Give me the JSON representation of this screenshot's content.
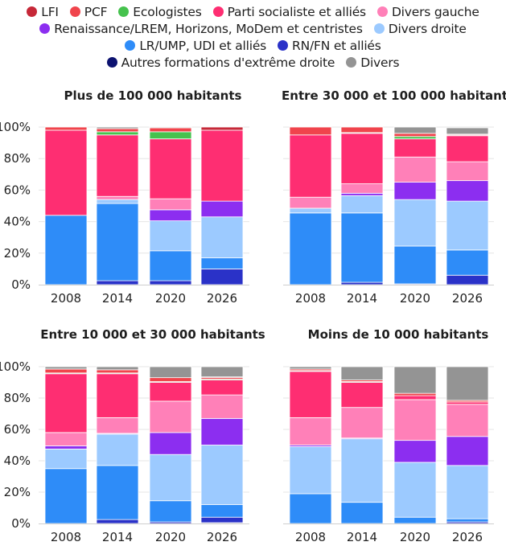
{
  "legend": [
    {
      "name": "LFI",
      "color": "#c62838"
    },
    {
      "name": "PCF",
      "color": "#f0444c"
    },
    {
      "name": "Ecologistes",
      "color": "#46c24e"
    },
    {
      "name": "Parti socialiste et alliés",
      "color": "#fe2e72"
    },
    {
      "name": "Divers gauche",
      "color": "#ff80b8"
    },
    {
      "name": "Renaissance/LREM, Horizons, MoDem et centristes",
      "color": "#8c2ef0"
    },
    {
      "name": "Divers droite",
      "color": "#9ccaff"
    },
    {
      "name": "LR/UMP, UDI et alliés",
      "color": "#2e8cf8"
    },
    {
      "name": "RN/FN et alliés",
      "color": "#2a32c8"
    },
    {
      "name": "Autres formations d'extrême droite",
      "color": "#0c1270"
    },
    {
      "name": "Divers",
      "color": "#949494"
    }
  ],
  "legend_rows": [
    [
      0,
      1,
      2,
      3,
      4
    ],
    [
      5,
      6
    ],
    [
      7,
      8
    ],
    [
      9,
      10
    ]
  ],
  "chart_data": [
    {
      "type": "bar",
      "stacked": true,
      "title": "Plus de 100 000 habitants",
      "categories": [
        "2008",
        "2014",
        "2020",
        "2026"
      ],
      "ylim": [
        0,
        100
      ],
      "yticks": [
        "0%",
        "20%",
        "40%",
        "60%",
        "80%",
        "100%"
      ],
      "series": [
        {
          "name": "Autres formations d'extrême droite",
          "values": [
            0,
            0,
            0,
            0
          ]
        },
        {
          "name": "RN/FN et alliés",
          "values": [
            0,
            2.5,
            2.5,
            10
          ]
        },
        {
          "name": "LR/UMP, UDI et alliés",
          "values": [
            44,
            49,
            19,
            7
          ]
        },
        {
          "name": "Divers droite",
          "values": [
            0,
            2.5,
            19,
            26
          ]
        },
        {
          "name": "Renaissance/LREM, Horizons, MoDem et centristes",
          "values": [
            0,
            0,
            7,
            10
          ]
        },
        {
          "name": "Divers gauche",
          "values": [
            0,
            2,
            7,
            0
          ]
        },
        {
          "name": "Parti socialiste et alliés",
          "values": [
            54,
            39,
            38,
            45
          ]
        },
        {
          "name": "Ecologistes",
          "values": [
            0,
            2,
            4.5,
            0
          ]
        },
        {
          "name": "PCF",
          "values": [
            2,
            2,
            2.5,
            0
          ]
        },
        {
          "name": "LFI",
          "values": [
            0,
            0,
            0,
            2
          ]
        },
        {
          "name": "Divers",
          "values": [
            0,
            1,
            0.5,
            0
          ]
        }
      ]
    },
    {
      "type": "bar",
      "stacked": true,
      "title": "Entre 30 000 et 100 000 habitants",
      "categories": [
        "2008",
        "2014",
        "2020",
        "2026"
      ],
      "ylim": [
        0,
        100
      ],
      "yticks": [
        "0%",
        "20%",
        "40%",
        "60%",
        "80%",
        "100%"
      ],
      "series": [
        {
          "name": "Autres formations d'extrême droite",
          "values": [
            0,
            0,
            0,
            0
          ]
        },
        {
          "name": "RN/FN et alliés",
          "values": [
            0,
            1.5,
            0.5,
            6
          ]
        },
        {
          "name": "LR/UMP, UDI et alliés",
          "values": [
            45.5,
            44,
            24,
            16
          ]
        },
        {
          "name": "Divers droite",
          "values": [
            3,
            11,
            29.5,
            31
          ]
        },
        {
          "name": "Renaissance/LREM, Horizons, MoDem et centristes",
          "values": [
            0,
            1.5,
            11,
            13
          ]
        },
        {
          "name": "Divers gauche",
          "values": [
            7,
            6,
            16,
            12
          ]
        },
        {
          "name": "Parti socialiste et alliés",
          "values": [
            39.5,
            32,
            11.5,
            16.5
          ]
        },
        {
          "name": "Ecologistes",
          "values": [
            0,
            0.5,
            1.5,
            0
          ]
        },
        {
          "name": "PCF",
          "values": [
            5,
            3.5,
            2,
            0.5
          ]
        },
        {
          "name": "LFI",
          "values": [
            0,
            0,
            0,
            0.5
          ]
        },
        {
          "name": "Divers",
          "values": [
            0,
            0,
            4,
            4
          ]
        }
      ]
    },
    {
      "type": "bar",
      "stacked": true,
      "title": "Entre 10 000 et 30 000 habitants",
      "categories": [
        "2008",
        "2014",
        "2020",
        "2026"
      ],
      "ylim": [
        0,
        100
      ],
      "yticks": [
        "0%",
        "20%",
        "40%",
        "60%",
        "80%",
        "100%"
      ],
      "series": [
        {
          "name": "Autres formations d'extrême droite",
          "values": [
            0,
            0,
            0,
            0.5
          ]
        },
        {
          "name": "RN/FN et alliés",
          "values": [
            0,
            2.5,
            1,
            3.5
          ]
        },
        {
          "name": "LR/UMP, UDI et alliés",
          "values": [
            35,
            34.5,
            13.5,
            8
          ]
        },
        {
          "name": "Divers droite",
          "values": [
            12.5,
            20,
            29.5,
            38
          ]
        },
        {
          "name": "Renaissance/LREM, Horizons, MoDem et centristes",
          "values": [
            2,
            0.5,
            14,
            17
          ]
        },
        {
          "name": "Divers gauche",
          "values": [
            8.5,
            10,
            20,
            15
          ]
        },
        {
          "name": "Parti socialiste et alliés",
          "values": [
            37.5,
            28,
            12,
            9.5
          ]
        },
        {
          "name": "Ecologistes",
          "values": [
            0.5,
            0.5,
            0.5,
            0.5
          ]
        },
        {
          "name": "PCF",
          "values": [
            2.5,
            2,
            2.5,
            1
          ]
        },
        {
          "name": "LFI",
          "values": [
            0,
            0,
            0,
            0.5
          ]
        },
        {
          "name": "Divers",
          "values": [
            1.5,
            2,
            7,
            6.5
          ]
        }
      ]
    },
    {
      "type": "bar",
      "stacked": true,
      "title": "Moins de 10 000 habitants",
      "categories": [
        "2008",
        "2014",
        "2020",
        "2026"
      ],
      "ylim": [
        0,
        100
      ],
      "yticks": [
        "0%",
        "20%",
        "40%",
        "60%",
        "80%",
        "100%"
      ],
      "series": [
        {
          "name": "Autres formations d'extrême droite",
          "values": [
            0,
            0,
            0,
            0
          ]
        },
        {
          "name": "RN/FN et alliés",
          "values": [
            0,
            0,
            0,
            1
          ]
        },
        {
          "name": "LR/UMP, UDI et alliés",
          "values": [
            19,
            13.5,
            4,
            2
          ]
        },
        {
          "name": "Divers droite",
          "values": [
            30,
            40.5,
            35,
            34
          ]
        },
        {
          "name": "Renaissance/LREM, Horizons, MoDem et centristes",
          "values": [
            1,
            0.5,
            14,
            18.5
          ]
        },
        {
          "name": "Divers gauche",
          "values": [
            17.5,
            19.5,
            26,
            20.5
          ]
        },
        {
          "name": "Parti socialiste et alliés",
          "values": [
            29.5,
            16,
            2.5,
            1.5
          ]
        },
        {
          "name": "Ecologistes",
          "values": [
            0.5,
            0.5,
            0,
            0
          ]
        },
        {
          "name": "PCF",
          "values": [
            1,
            1,
            1.5,
            1
          ]
        },
        {
          "name": "LFI",
          "values": [
            0,
            0,
            0,
            0
          ]
        },
        {
          "name": "Divers",
          "values": [
            1.5,
            8.5,
            17,
            21.5
          ]
        }
      ]
    }
  ]
}
